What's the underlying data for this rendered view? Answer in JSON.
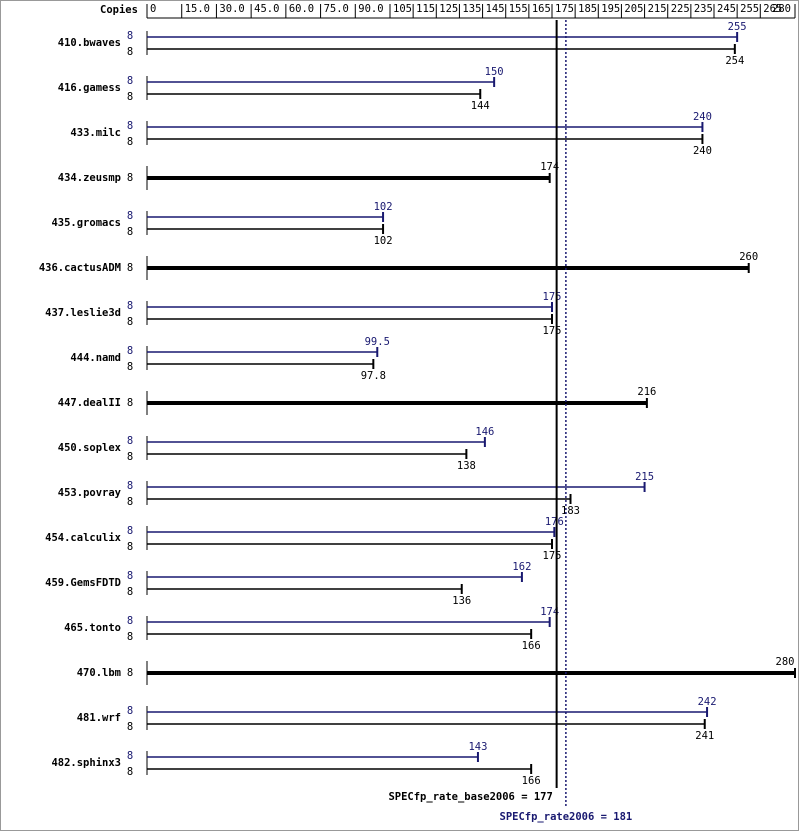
{
  "chart_data": {
    "type": "bar",
    "orientation": "horizontal",
    "axis_title": "Copies",
    "categories": [
      "410.bwaves",
      "416.gamess",
      "433.milc",
      "434.zeusmp",
      "435.gromacs",
      "436.cactusADM",
      "437.leslie3d",
      "444.namd",
      "447.dealII",
      "450.soplex",
      "453.povray",
      "454.calculix",
      "459.GemsFDTD",
      "465.tonto",
      "470.lbm",
      "481.wrf",
      "482.sphinx3"
    ],
    "series": [
      {
        "color": "#191970",
        "copies": [
          8,
          8,
          8,
          null,
          8,
          null,
          8,
          8,
          null,
          8,
          8,
          8,
          8,
          8,
          null,
          8,
          8
        ],
        "values": [
          255,
          150,
          240,
          null,
          102,
          null,
          175,
          99.5,
          null,
          146,
          215,
          176,
          162,
          174,
          null,
          242,
          143
        ]
      },
      {
        "color": "#000000",
        "copies": [
          8,
          8,
          8,
          8,
          8,
          8,
          8,
          8,
          8,
          8,
          8,
          8,
          8,
          8,
          8,
          8,
          8
        ],
        "values": [
          254,
          144,
          240,
          174,
          102,
          260,
          175,
          97.8,
          216,
          138,
          183,
          175,
          136,
          166,
          280,
          241,
          166
        ]
      }
    ],
    "xlim": [
      0,
      280
    ],
    "xticks": [
      0,
      {
        "value": 15,
        "label": "15.0"
      },
      {
        "value": 30,
        "label": "30.0"
      },
      {
        "value": 45,
        "label": "45.0"
      },
      {
        "value": 60,
        "label": "60.0"
      },
      {
        "value": 75,
        "label": "75.0"
      },
      {
        "value": 90,
        "label": "90.0"
      },
      105,
      115,
      125,
      135,
      145,
      155,
      165,
      175,
      185,
      195,
      205,
      215,
      225,
      235,
      245,
      255,
      265,
      280
    ],
    "reference_lines": [
      {
        "label": "SPECfp_rate_base2006 = 177",
        "value": 177,
        "color": "#000000",
        "dotted": false
      },
      {
        "label": "SPECfp_rate2006 = 181",
        "value": 181,
        "color": "#191970",
        "dotted": true
      }
    ]
  }
}
